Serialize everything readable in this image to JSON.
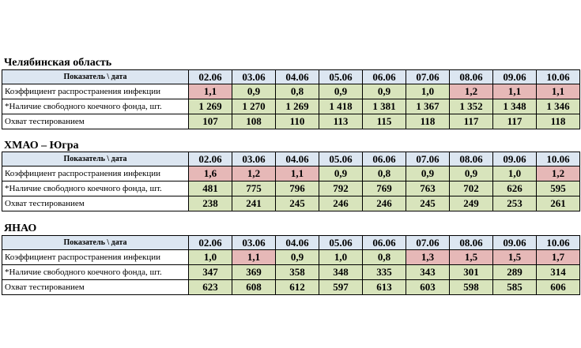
{
  "header_label": "Показатель \\ дата",
  "dates": [
    "02.06",
    "03.06",
    "04.06",
    "05.06",
    "06.06",
    "07.06",
    "08.06",
    "09.06",
    "10.06"
  ],
  "row_labels": [
    "Коэффициент распространения инфекции",
    "*Наличие свободного коечного фонда, шт.",
    "Охват тестированием"
  ],
  "cell_colors": {
    "green": "#d8e4bc",
    "red": "#e6b8b7",
    "header": "#dce6f1"
  },
  "regions": [
    {
      "name": "Челябинская область",
      "infection_rate": [
        "1,1",
        "0,9",
        "0,8",
        "0,9",
        "0,9",
        "1,0",
        "1,2",
        "1,1",
        "1,1"
      ],
      "infection_status": [
        "red",
        "green",
        "green",
        "green",
        "green",
        "green",
        "red",
        "red",
        "red"
      ],
      "beds": [
        "1 269",
        "1 270",
        "1 269",
        "1 418",
        "1 381",
        "1 367",
        "1 352",
        "1 348",
        "1 346"
      ],
      "testing": [
        "107",
        "108",
        "110",
        "113",
        "115",
        "118",
        "117",
        "117",
        "118"
      ]
    },
    {
      "name": "ХМАО – Югра",
      "infection_rate": [
        "1,6",
        "1,2",
        "1,1",
        "0,9",
        "0,8",
        "0,9",
        "0,9",
        "1,0",
        "1,2"
      ],
      "infection_status": [
        "red",
        "red",
        "red",
        "green",
        "green",
        "green",
        "green",
        "green",
        "red"
      ],
      "beds": [
        "481",
        "775",
        "796",
        "792",
        "769",
        "763",
        "702",
        "626",
        "595"
      ],
      "testing": [
        "238",
        "241",
        "245",
        "246",
        "246",
        "245",
        "249",
        "253",
        "261"
      ]
    },
    {
      "name": "ЯНАО",
      "infection_rate": [
        "1,0",
        "1,1",
        "0,9",
        "1,0",
        "0,8",
        "1,3",
        "1,5",
        "1,5",
        "1,7"
      ],
      "infection_status": [
        "green",
        "red",
        "green",
        "green",
        "green",
        "red",
        "red",
        "red",
        "red"
      ],
      "beds": [
        "347",
        "369",
        "358",
        "348",
        "335",
        "343",
        "301",
        "289",
        "314"
      ],
      "testing": [
        "623",
        "608",
        "612",
        "597",
        "613",
        "603",
        "598",
        "585",
        "606"
      ]
    }
  ]
}
